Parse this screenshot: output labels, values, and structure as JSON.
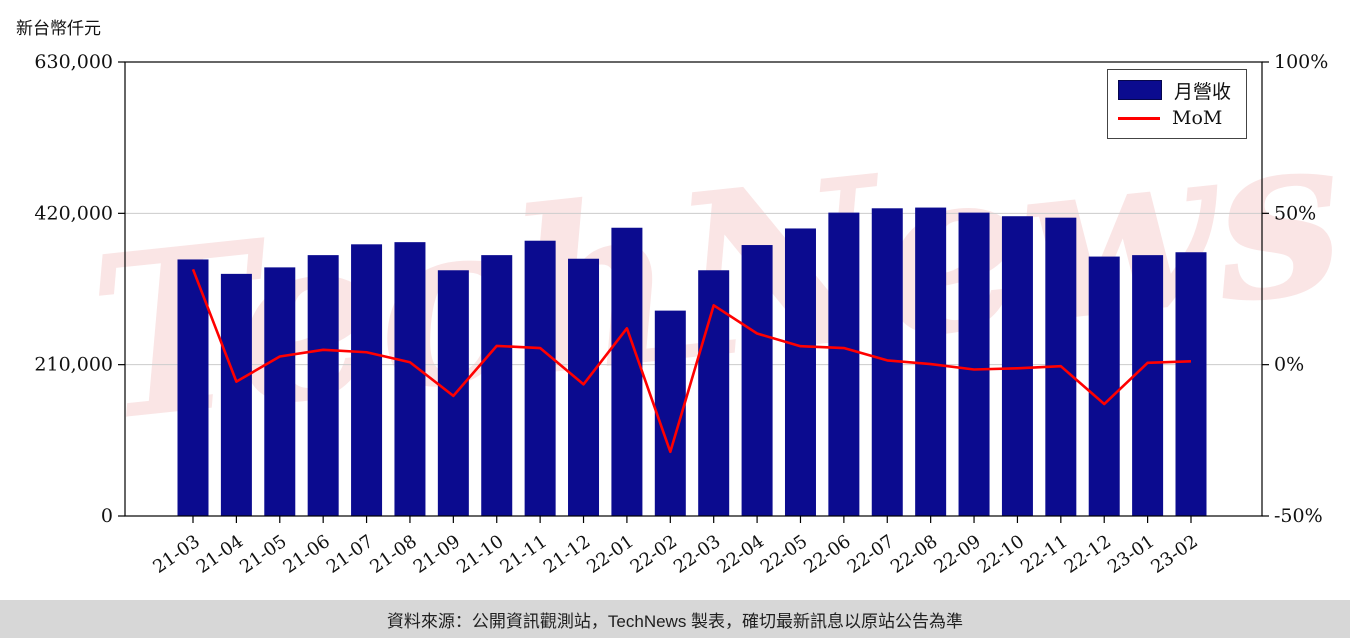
{
  "watermark": "TechNews",
  "footer": {
    "text": "資料來源：公開資訊觀測站，TechNews 製表，確切最新訊息以原站公告為準"
  },
  "chart_data": {
    "type": "bar",
    "title": "",
    "unit_label": "新台幣仟元",
    "xlabel": "",
    "ylabel": "新台幣仟元",
    "categories": [
      "21-03",
      "21-04",
      "21-05",
      "21-06",
      "21-07",
      "21-08",
      "21-09",
      "21-10",
      "21-11",
      "21-12",
      "22-01",
      "22-02",
      "22-03",
      "22-04",
      "22-05",
      "22-06",
      "22-07",
      "22-08",
      "22-09",
      "22-10",
      "22-11",
      "22-12",
      "23-01",
      "23-02"
    ],
    "series": [
      {
        "name": "月營收",
        "type": "bar",
        "axis": "left",
        "color": "#0b0b8f",
        "values": [
          356000,
          336000,
          345000,
          362000,
          377000,
          380000,
          341000,
          362000,
          382000,
          357000,
          400000,
          285000,
          341000,
          376000,
          399000,
          421000,
          427000,
          428000,
          421000,
          416000,
          414000,
          360000,
          362000,
          366000
        ]
      },
      {
        "name": "MoM",
        "type": "line",
        "axis": "right",
        "color": "#ff0000",
        "values": [
          31.5,
          -5.6,
          2.7,
          4.9,
          4.1,
          0.8,
          -10.3,
          6.2,
          5.5,
          -6.5,
          12.0,
          -28.8,
          19.6,
          10.3,
          6.1,
          5.5,
          1.4,
          0.2,
          -1.6,
          -1.2,
          -0.5,
          -13.0,
          0.6,
          1.1
        ]
      }
    ],
    "left_axis": {
      "range": [
        0,
        630000
      ],
      "tick_values": [
        0,
        210000,
        420000,
        630000
      ],
      "tick_labels": [
        "0",
        "210,000",
        "420,000",
        "630,000"
      ]
    },
    "right_axis": {
      "range": [
        -50,
        100
      ],
      "tick_values": [
        -50,
        0,
        50,
        100
      ],
      "tick_labels": [
        "-50%",
        "0%",
        "50%",
        "100%"
      ]
    },
    "grid": "horizontal",
    "legend_position": "top-right"
  }
}
